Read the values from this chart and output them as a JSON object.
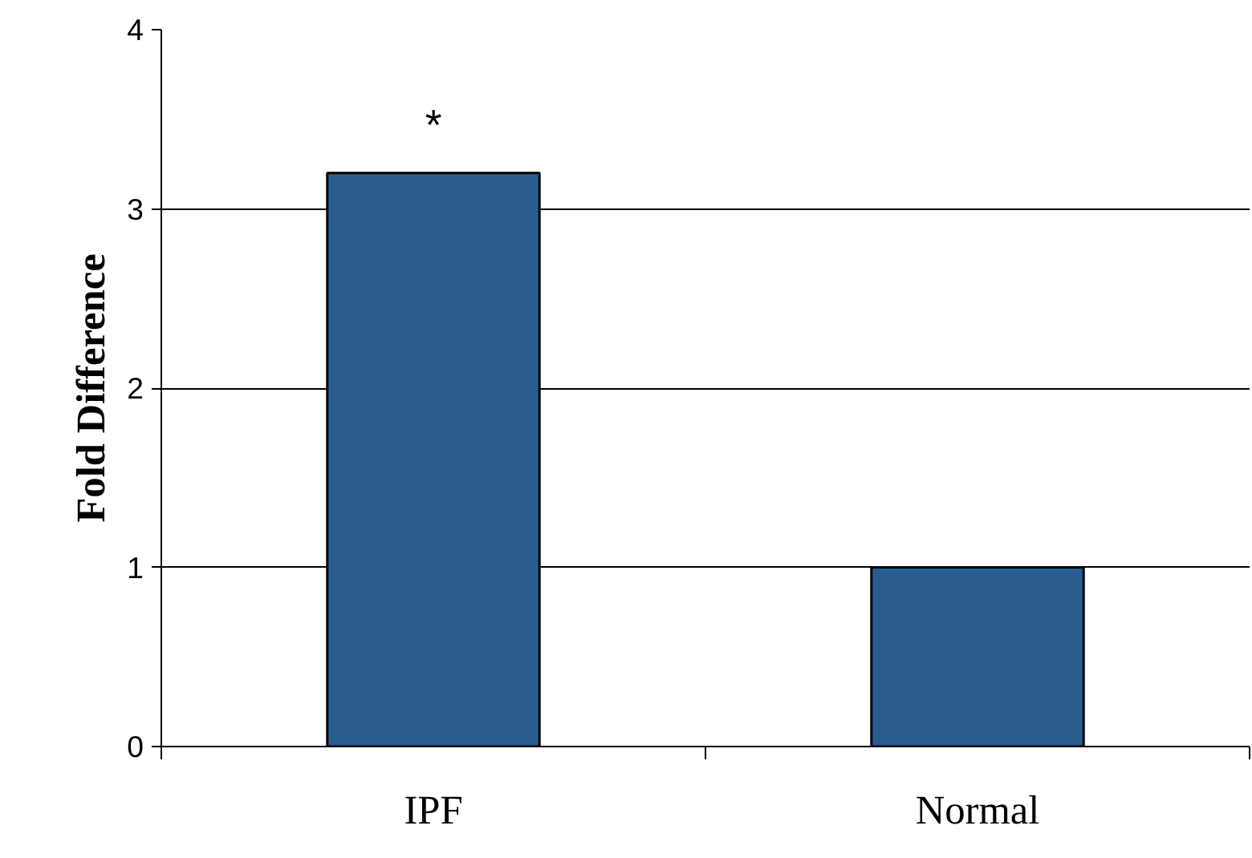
{
  "chart_data": {
    "type": "bar",
    "ylabel": "Fold Difference",
    "categories": [
      "IPF",
      "Normal"
    ],
    "values": [
      3.2,
      1.0
    ],
    "color": "#2a5d8f",
    "ylim": [
      0,
      4
    ],
    "yticks": [
      0,
      1,
      2,
      3,
      4
    ],
    "grid": "y",
    "annotations": [
      "*"
    ]
  }
}
